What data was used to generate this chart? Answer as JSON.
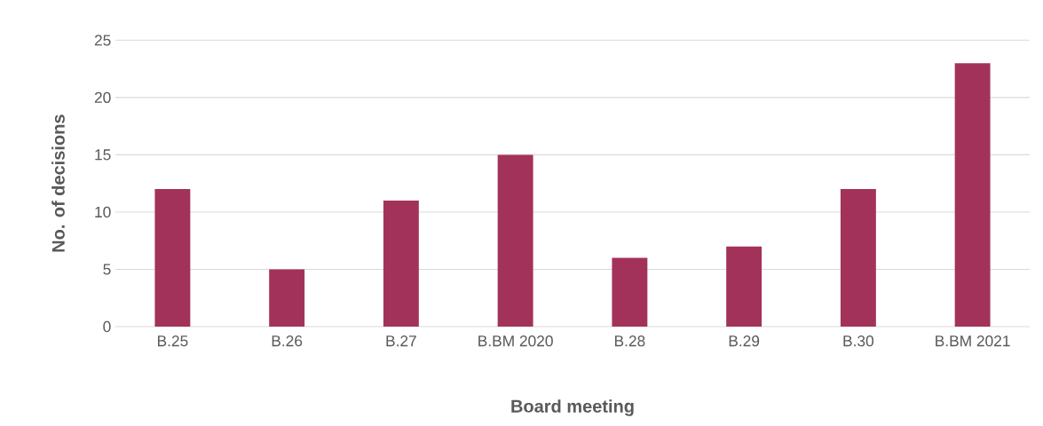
{
  "chart_data": {
    "type": "bar",
    "xlabel": "Board meeting",
    "ylabel": "No. of decisions",
    "categories": [
      "B.25",
      "B.26",
      "B.27",
      "B.BM 2020",
      "B.28",
      "B.29",
      "B.30",
      "B.BM 2021"
    ],
    "values": [
      12,
      5,
      11,
      15,
      6,
      7,
      12,
      23
    ],
    "color": "#a3325a",
    "ylim": [
      0,
      25
    ],
    "yticks": [
      0,
      5,
      10,
      15,
      20,
      25
    ],
    "grid": "y"
  }
}
